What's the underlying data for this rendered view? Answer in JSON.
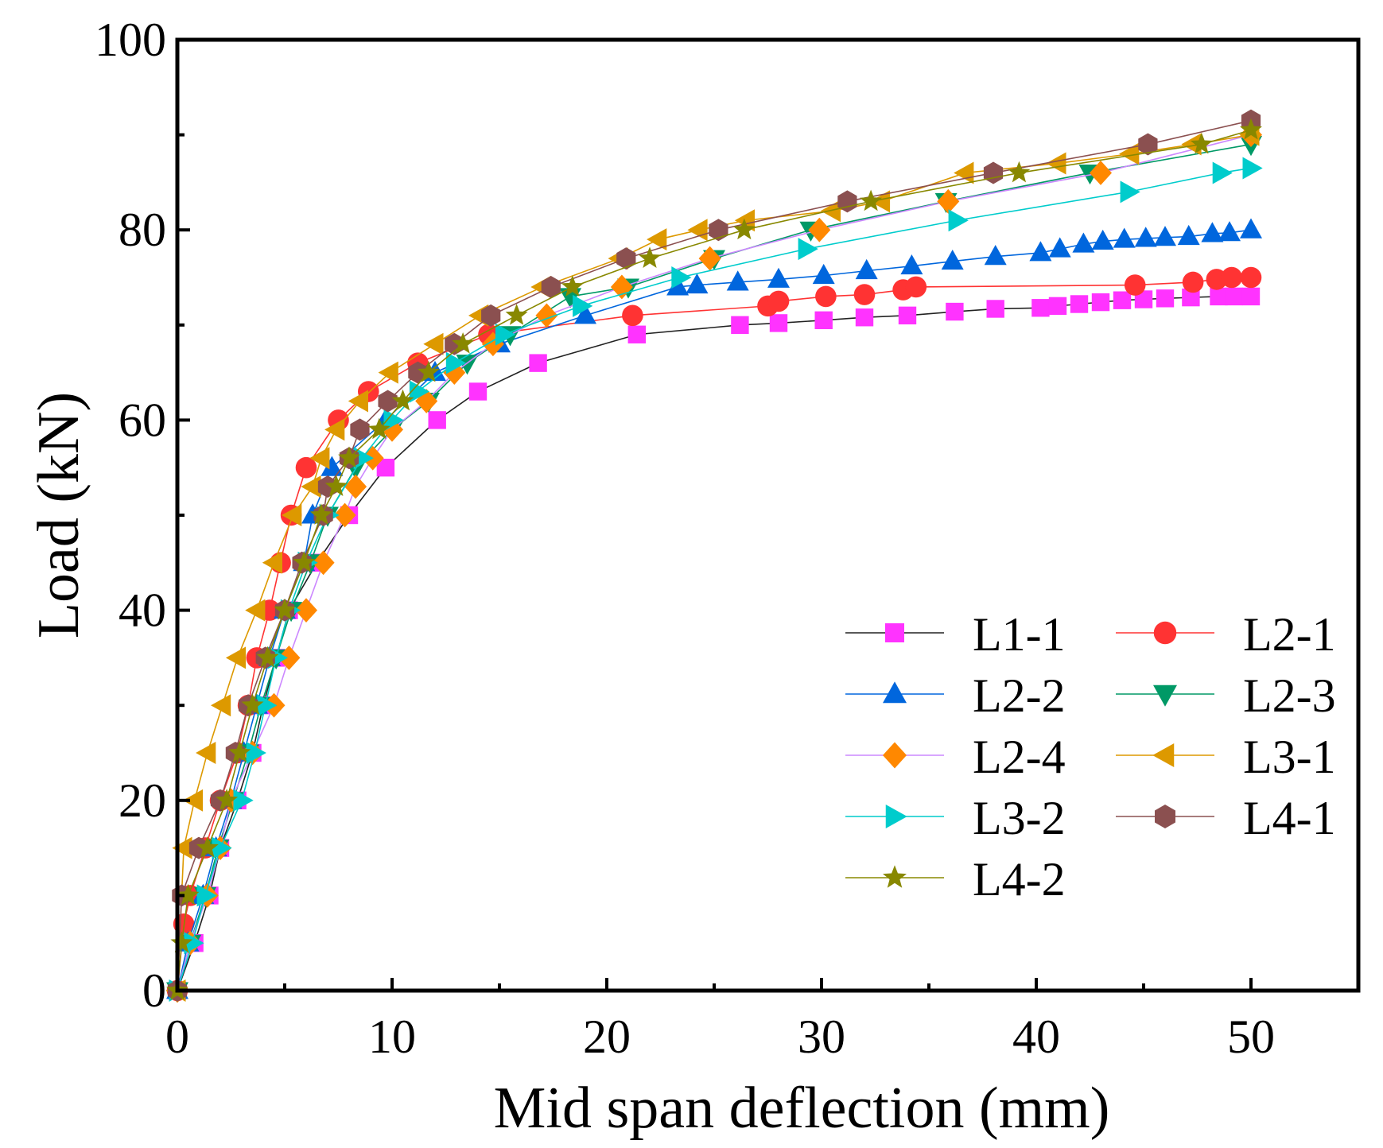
{
  "chart_data": {
    "type": "line",
    "title": "",
    "xlabel": "Mid span deflection (mm)",
    "ylabel": "Load (kN)",
    "xlim": [
      0,
      55
    ],
    "ylim": [
      0,
      100
    ],
    "xticks": [
      "0",
      "10",
      "20",
      "30",
      "40",
      "50"
    ],
    "yticks": [
      "0",
      "20",
      "40",
      "60",
      "80",
      "100"
    ],
    "grid": false,
    "legend_position": "bottom-right",
    "series": [
      {
        "name": "L1-1",
        "marker": "square",
        "color": "#ff33ff",
        "line_color": "#222222",
        "x": [
          0,
          0.8,
          1.5,
          2.0,
          2.8,
          3.5,
          4.0,
          4.6,
          5.2,
          6.5,
          8.0,
          9.7,
          12.1,
          14.0,
          16.8,
          21.4,
          26.2,
          28.0,
          30.1,
          32.0,
          34.0,
          36.2,
          38.1,
          40.2,
          41.0,
          42.0,
          43.0,
          44.0,
          45.0,
          46.0,
          47.2,
          48.5,
          49.2,
          50.0
        ],
        "y": [
          0,
          5,
          10,
          15,
          20,
          25,
          30,
          35,
          40,
          45,
          50,
          55,
          60,
          63,
          66,
          69,
          70,
          70.2,
          70.5,
          70.8,
          71,
          71.4,
          71.7,
          71.8,
          72,
          72.2,
          72.4,
          72.6,
          72.7,
          72.8,
          72.9,
          73,
          73,
          73
        ]
      },
      {
        "name": "L2-1",
        "marker": "circle",
        "color": "#ff3333",
        "line_color": "#ff3333",
        "x": [
          0,
          0.3,
          0.6,
          1.3,
          2.0,
          2.8,
          3.3,
          3.7,
          4.3,
          4.8,
          5.3,
          6.0,
          7.5,
          8.9,
          11.2,
          14.5,
          21.2,
          27.5,
          28.0,
          30.2,
          32.0,
          33.8,
          34.4,
          44.6,
          47.3,
          48.4,
          49.1,
          50.0
        ],
        "y": [
          0,
          7,
          10,
          15,
          20,
          25,
          30,
          35,
          40,
          45,
          50,
          55,
          60,
          63,
          66,
          69,
          71,
          72,
          72.5,
          73,
          73.2,
          73.7,
          74,
          74.2,
          74.5,
          74.8,
          75,
          75
        ]
      },
      {
        "name": "L2-2",
        "marker": "triangle-up",
        "color": "#0066dd",
        "line_color": "#0066dd",
        "x": [
          0,
          0.5,
          1.2,
          1.8,
          2.5,
          3.1,
          3.7,
          4.3,
          5.0,
          5.9,
          6.3,
          7.2,
          9.7,
          12.0,
          15.0,
          19.0,
          23.3,
          24.2,
          26.1,
          28.0,
          30.1,
          32.1,
          34.2,
          36.1,
          38.1,
          40.2,
          41.1,
          42.2,
          43.1,
          44.1,
          45.1,
          46.0,
          47.1,
          48.2,
          49.0,
          50.0
        ],
        "y": [
          0,
          5,
          10,
          15,
          20,
          25,
          30,
          35,
          40,
          45,
          50,
          55,
          60,
          65,
          68,
          71,
          74,
          74.2,
          74.5,
          74.8,
          75.2,
          75.7,
          76.2,
          76.7,
          77.2,
          77.6,
          78,
          78.5,
          78.8,
          79,
          79.1,
          79.2,
          79.3,
          79.6,
          79.7,
          80
        ]
      },
      {
        "name": "L2-3",
        "marker": "triangle-down",
        "color": "#009966",
        "line_color": "#009966",
        "x": [
          0,
          0.6,
          1.3,
          1.9,
          2.6,
          3.3,
          3.9,
          4.6,
          5.3,
          6.2,
          7.0,
          8.3,
          10.0,
          11.7,
          13.5,
          15.5,
          18.3,
          21.0,
          25.0,
          29.5,
          35.8,
          42.5,
          50.0
        ],
        "y": [
          0,
          5,
          10,
          15,
          20,
          25,
          30,
          35,
          40,
          45,
          50,
          55,
          59,
          62,
          66,
          69,
          73,
          74,
          77,
          80,
          83,
          86,
          89
        ]
      },
      {
        "name": "L2-4",
        "marker": "diamond",
        "color": "#ff8800",
        "line_color": "#cc88ff",
        "x": [
          0,
          0.6,
          1.4,
          2.0,
          2.5,
          3.5,
          4.5,
          5.2,
          6.0,
          6.8,
          7.8,
          8.3,
          9.1,
          10.0,
          11.6,
          12.9,
          14.7,
          17.2,
          20.7,
          24.8,
          29.9,
          35.9,
          43.0,
          50.0
        ],
        "y": [
          0,
          5,
          10,
          15,
          20,
          25,
          30,
          35,
          40,
          45,
          50,
          53,
          56,
          59,
          62,
          65,
          68,
          71,
          74,
          77,
          80,
          83,
          86,
          90
        ]
      },
      {
        "name": "L3-1",
        "marker": "triangle-left",
        "color": "#dd9900",
        "line_color": "#dd9900",
        "x": [
          0,
          0.3,
          0.8,
          1.4,
          2.1,
          2.8,
          3.7,
          4.5,
          5.4,
          6.3,
          6.7,
          7.4,
          8.5,
          9.9,
          12.0,
          14.1,
          17.0,
          20.6,
          22.4,
          24.3,
          26.5,
          30.5,
          32.8,
          36.7,
          41.0,
          44.4,
          47.3,
          50.0
        ],
        "y": [
          0,
          15,
          20,
          25,
          30,
          35,
          40,
          45,
          50,
          53,
          56,
          59,
          62,
          65,
          68,
          71,
          74,
          77,
          79,
          80,
          81,
          82,
          83,
          86,
          87,
          88,
          89,
          90
        ]
      },
      {
        "name": "L3-2",
        "marker": "triangle-right",
        "color": "#00cccc",
        "line_color": "#00cccc",
        "x": [
          0,
          0.7,
          1.3,
          2.0,
          3.0,
          3.6,
          4.1,
          4.6,
          5.2,
          6.0,
          7.0,
          8.6,
          10.0,
          11.2,
          12.9,
          15.2,
          18.8,
          23.4,
          29.3,
          36.3,
          44.3,
          48.6,
          50.0
        ],
        "y": [
          0,
          5,
          10,
          15,
          20,
          25,
          30,
          35,
          40,
          45,
          50,
          56,
          60,
          63,
          66,
          69,
          72,
          75,
          78,
          81,
          84,
          86,
          86.5
        ]
      },
      {
        "name": "L4-1",
        "marker": "hexagon",
        "color": "#8b5050",
        "line_color": "#8b5050",
        "x": [
          0,
          0.2,
          1.0,
          2.0,
          2.7,
          3.3,
          4.1,
          5.0,
          5.8,
          6.8,
          7.0,
          8.0,
          8.5,
          9.8,
          11.2,
          12.9,
          14.6,
          17.4,
          20.9,
          25.2,
          31.2,
          38.0,
          45.2,
          50.0
        ],
        "y": [
          0,
          10,
          15,
          20,
          25,
          30,
          35,
          40,
          45,
          50,
          53,
          56,
          59,
          62,
          65,
          68,
          71,
          74,
          77,
          80,
          83,
          86,
          89,
          91.5
        ]
      },
      {
        "name": "L4-2",
        "marker": "star",
        "color": "#888800",
        "line_color": "#888800",
        "x": [
          0,
          0.2,
          0.5,
          1.4,
          2.3,
          2.9,
          3.5,
          4.2,
          5.0,
          5.9,
          6.7,
          7.4,
          8.0,
          9.4,
          10.5,
          11.7,
          13.3,
          15.8,
          18.4,
          22.0,
          26.4,
          32.3,
          39.2,
          47.7,
          50.0
        ],
        "y": [
          0,
          5,
          10,
          15,
          20,
          25,
          30,
          35,
          40,
          45,
          50,
          53,
          56,
          59,
          62,
          65,
          68,
          71,
          74,
          77,
          80,
          83,
          86,
          89,
          90.5
        ]
      }
    ]
  }
}
